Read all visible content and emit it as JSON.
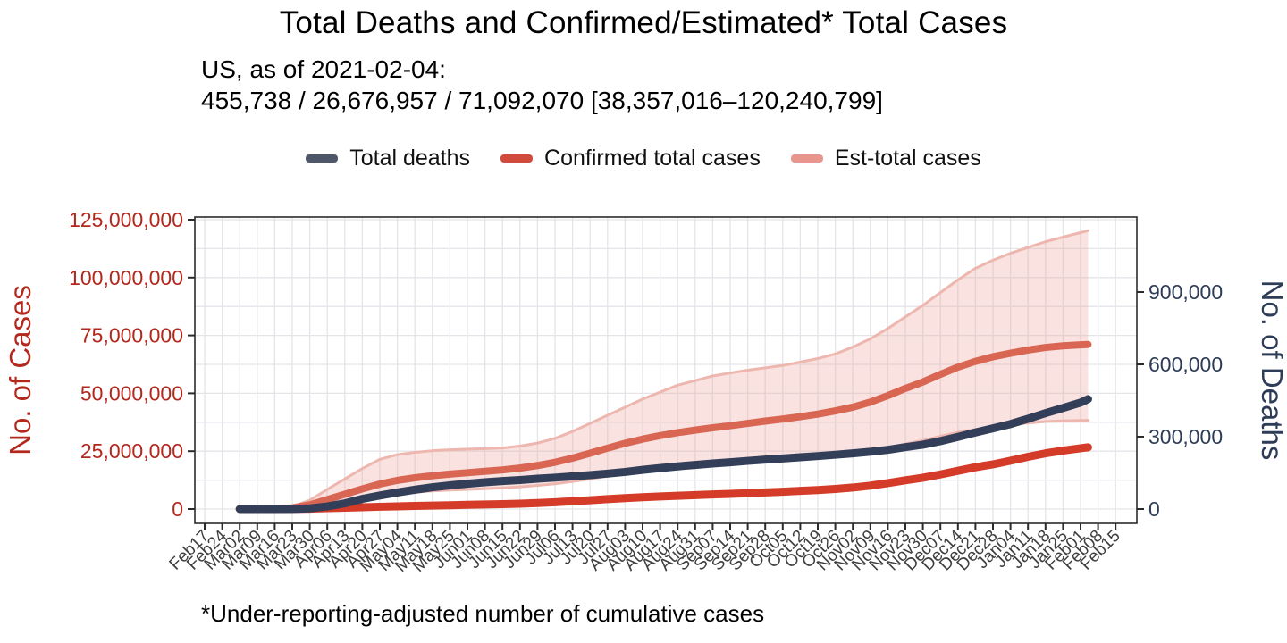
{
  "title": "Total Deaths and Confirmed/Estimated* Total Cases",
  "subtitle_line1": "US, as of 2021-02-04:",
  "subtitle_line2": "455,738 / 26,676,957 / 71,092,070 [38,357,016–120,240,799]",
  "footnote": "*Under-reporting-adjusted number of cumulative cases",
  "legend": [
    {
      "label": "Total deaths",
      "color": "#4d5767"
    },
    {
      "label": "Confirmed total cases",
      "color": "#d04b3b"
    },
    {
      "label": "Est-total cases",
      "color": "#e8958d"
    }
  ],
  "chart_data": {
    "type": "line",
    "title": "Total Deaths and Confirmed/Estimated* Total Cases",
    "grid": "on",
    "grid_color": "#e5e5e9",
    "border_color": "#2b2b2b",
    "x_tick_label_color": "#3e3e3e",
    "x_tick_labels": [
      "Feb17",
      "Feb24",
      "Mar02",
      "Mar09",
      "Mar16",
      "Mar23",
      "Mar30",
      "Apr06",
      "Apr13",
      "Apr20",
      "Apr27",
      "May04",
      "May11",
      "May18",
      "May25",
      "Jun01",
      "Jun08",
      "Jun15",
      "Jun22",
      "Jun29",
      "Jul06",
      "Jul13",
      "Jul20",
      "Jul27",
      "Aug03",
      "Aug10",
      "Aug17",
      "Aug24",
      "Aug31",
      "Sep07",
      "Sep14",
      "Sep21",
      "Sep28",
      "Oct05",
      "Oct12",
      "Oct19",
      "Oct26",
      "Nov02",
      "Nov09",
      "Nov16",
      "Nov23",
      "Nov30",
      "Dec07",
      "Dec14",
      "Dec21",
      "Dec28",
      "Jan04",
      "Jan11",
      "Jan18",
      "Jan25",
      "Feb01",
      "Feb08",
      "Feb15"
    ],
    "x_start_index": 2,
    "x_end": 50.43,
    "left_axis": {
      "label": "No. of Cases",
      "color": "#b3271d",
      "max": 125000000,
      "minor_step": 12500000,
      "ticks": [
        0,
        25000000,
        50000000,
        75000000,
        100000000,
        125000000
      ],
      "tick_labels": [
        "0",
        "25,000,000",
        "50,000,000",
        "75,000,000",
        "100,000,000",
        "125,000,000"
      ]
    },
    "right_axis": {
      "label": "No. of Deaths",
      "color": "#2e3d57",
      "max": 1270000,
      "ticks": [
        0,
        300000,
        600000,
        900000
      ],
      "tick_labels": [
        "0",
        "300,000",
        "600,000",
        "900,000"
      ]
    },
    "band": {
      "name": "Est-total cases uncertainty interval",
      "axis": "cases",
      "fill": "rgba(235,160,152,0.30)",
      "edge_color": "#edb7af",
      "upper": [
        2000,
        15000,
        100000,
        1100000,
        3800000,
        8500000,
        13000000,
        17500000,
        21500000,
        23500000,
        24500000,
        25200000,
        25600000,
        25900000,
        26100000,
        26400000,
        27200000,
        28500000,
        30500000,
        33500000,
        37000000,
        40500000,
        44000000,
        47500000,
        50500000,
        53500000,
        55500000,
        57500000,
        58800000,
        60000000,
        61000000,
        62000000,
        63500000,
        65000000,
        67000000,
        70000000,
        73500000,
        78000000,
        83000000,
        88000000,
        93500000,
        99000000,
        104000000,
        107500000,
        110500000,
        113000000,
        115500000,
        117500000,
        119400000,
        120240799
      ],
      "lower": [
        540,
        3800,
        27000,
        270000,
        970000,
        2200000,
        3450000,
        4700000,
        5800000,
        6700000,
        7300000,
        7800000,
        8200000,
        8500000,
        8800000,
        9100000,
        9600000,
        10200000,
        10900000,
        11900000,
        13000000,
        14200000,
        15300000,
        16300000,
        17100000,
        17800000,
        18400000,
        19000000,
        19400000,
        20000000,
        20500000,
        21000000,
        21500000,
        22100000,
        22900000,
        23700000,
        24900000,
        26400000,
        28100000,
        29600000,
        31400000,
        33100000,
        34400000,
        35500000,
        36400000,
        37200000,
        37800000,
        38100000,
        38300000,
        38357016
      ]
    },
    "series": [
      {
        "name": "Total deaths",
        "axis": "deaths",
        "color": "#333e58",
        "width": 9,
        "final_value": 455738,
        "values": [
          6,
          22,
          68,
          550,
          2995,
          10900,
          23600,
          42100,
          56200,
          68700,
          80100,
          90300,
          98200,
          105100,
          111100,
          116100,
          120400,
          125900,
          130300,
          135600,
          140900,
          147000,
          154000,
          162400,
          169900,
          176900,
          183000,
          188900,
          194100,
          199800,
          205000,
          209900,
          214800,
          219700,
          225200,
          230900,
          237700,
          245600,
          256800,
          266900,
          281700,
          298900,
          317700,
          334800,
          352500,
          374500,
          397600,
          419200,
          441300,
          455738
        ]
      },
      {
        "name": "Confirmed total cases",
        "axis": "cases",
        "color": "#d43b28",
        "width": 9,
        "final_value": 26676957,
        "values": [
          100,
          600,
          4500,
          44000,
          161000,
          366000,
          580000,
          784000,
          988000,
          1180000,
          1350000,
          1510000,
          1660000,
          1810000,
          1960000,
          2110000,
          2310000,
          2590000,
          2940000,
          3360000,
          3830000,
          4290000,
          4710000,
          5090000,
          5430000,
          5740000,
          6030000,
          6300000,
          6560000,
          6860000,
          7190000,
          7460000,
          7850000,
          8210000,
          8700000,
          9290000,
          10110000,
          11200000,
          12420000,
          13540000,
          14950000,
          16520000,
          18050000,
          19300000,
          20870000,
          22560000,
          24070000,
          25260000,
          26260000,
          26676957
        ]
      },
      {
        "name": "Est-total cases",
        "axis": "cases",
        "color": "#d96653",
        "width": 8,
        "final_value": 71092070,
        "values": [
          1000,
          7000,
          50000,
          500000,
          1800000,
          4100000,
          6400000,
          8700000,
          10800000,
          12400000,
          13500000,
          14400000,
          15100000,
          15700000,
          16300000,
          16900000,
          17700000,
          18800000,
          20200000,
          22000000,
          24100000,
          26300000,
          28400000,
          30200000,
          31700000,
          33000000,
          34100000,
          35100000,
          36000000,
          37000000,
          38000000,
          38900000,
          39900000,
          41000000,
          42400000,
          44000000,
          46200000,
          49000000,
          52100000,
          54900000,
          58200000,
          61300000,
          63800000,
          65800000,
          67300000,
          68700000,
          69800000,
          70500000,
          70950000,
          71092070
        ]
      }
    ]
  }
}
